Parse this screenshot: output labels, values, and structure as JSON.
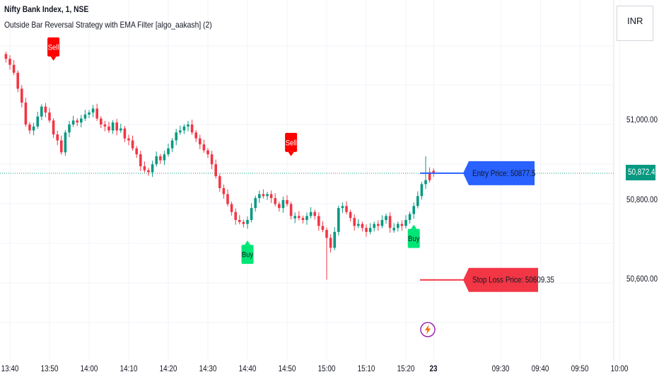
{
  "header": {
    "title": "Nifty Bank Index, 1, NSE",
    "subtitle": "Outside Bar Reversal Strategy with EMA Filter [algo_aakash] (2)"
  },
  "currency_button": {
    "label": "INR"
  },
  "last_price": {
    "label": "50,872.45",
    "value": 50872.45
  },
  "colors": {
    "up": "#089981",
    "down": "#f23645",
    "buy": "#00e676",
    "sell": "#ff0000",
    "entry": "#2962ff",
    "stoploss": "#f23645",
    "grid": "#f0f3fa"
  },
  "chart_data": {
    "type": "candlestick",
    "title": "Nifty Bank Index, 1, NSE",
    "y_ticks": [
      {
        "label": "51,000.00",
        "value": 51000
      },
      {
        "label": "50,800.00",
        "value": 50800
      },
      {
        "label": "50,600.00",
        "value": 50600
      }
    ],
    "x_ticks": [
      {
        "label": "13:40",
        "index": 1
      },
      {
        "label": "13:50",
        "index": 11
      },
      {
        "label": "14:00",
        "index": 21
      },
      {
        "label": "14:10",
        "index": 31
      },
      {
        "label": "14:20",
        "index": 41
      },
      {
        "label": "14:30",
        "index": 51
      },
      {
        "label": "14:40",
        "index": 61
      },
      {
        "label": "14:50",
        "index": 71
      },
      {
        "label": "15:00",
        "index": 81
      },
      {
        "label": "15:10",
        "index": 91
      },
      {
        "label": "15:20",
        "index": 101
      },
      {
        "label": "23",
        "index": 108,
        "bold": true
      },
      {
        "label": "09:30",
        "index": 125
      },
      {
        "label": "09:40",
        "index": 135
      },
      {
        "label": "09:50",
        "index": 145
      },
      {
        "label": "10:00",
        "index": 155
      }
    ],
    "closes": [
      51165,
      51150,
      51130,
      51090,
      51055,
      51000,
      50985,
      50995,
      51020,
      51045,
      51030,
      51010,
      50975,
      50960,
      50930,
      50980,
      51000,
      51010,
      51005,
      51015,
      51025,
      51030,
      51040,
      51015,
      51000,
      50995,
      50985,
      51005,
      50985,
      50990,
      50965,
      50960,
      50940,
      50925,
      50895,
      50885,
      50880,
      50900,
      50920,
      50910,
      50925,
      50940,
      50960,
      50980,
      50985,
      50995,
      51000,
      50980,
      50965,
      50950,
      50935,
      50925,
      50900,
      50870,
      50840,
      50825,
      50800,
      50780,
      50760,
      50755,
      50750,
      50760,
      50790,
      50815,
      50825,
      50820,
      50825,
      50815,
      50800,
      50790,
      50810,
      50800,
      50770,
      50770,
      50765,
      50760,
      50770,
      50780,
      50770,
      50745,
      50735,
      50715,
      50690,
      50730,
      50790,
      50795,
      50780,
      50765,
      50745,
      50750,
      50740,
      50730,
      50740,
      50750,
      50745,
      50760,
      50770,
      50740,
      50740,
      50750,
      50745,
      50760,
      50775,
      50795,
      50820,
      50850,
      50860,
      50880,
      50877.5
    ],
    "opens_down": [
      1,
      2,
      3,
      4,
      5,
      6,
      13,
      14,
      24,
      25,
      26,
      28,
      30,
      31,
      32,
      33,
      35,
      36,
      39,
      47,
      48,
      49,
      50,
      51,
      52,
      53,
      54,
      55,
      56,
      57,
      58,
      59,
      60,
      65,
      67,
      68,
      69,
      71,
      72,
      74,
      75,
      78,
      79,
      80,
      81,
      82,
      86,
      87,
      88,
      90,
      91,
      94,
      97,
      100,
      107
    ],
    "markers": [
      {
        "type": "sell",
        "label": "Sell",
        "index": 12,
        "anchor_price": 51130
      },
      {
        "type": "buy",
        "label": "Buy",
        "index": 61,
        "anchor_price": 50735
      },
      {
        "type": "sell",
        "label": "Sell",
        "index": 72,
        "anchor_price": 50890
      },
      {
        "type": "buy",
        "label": "Buy",
        "index": 103,
        "anchor_price": 50775
      }
    ],
    "entry": {
      "label": "Entry Price: 50877.5",
      "price": 50877.5
    },
    "stop_loss": {
      "label": "Stop Loss Price: 50609.35",
      "price": 50609.35
    }
  }
}
